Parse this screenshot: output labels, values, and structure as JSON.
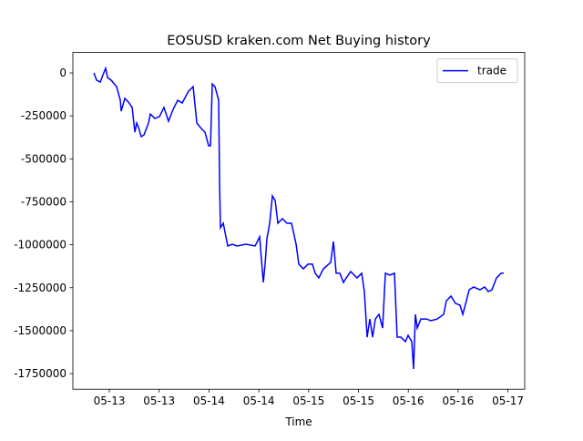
{
  "chart_data": {
    "type": "line",
    "title": "EOSUSD kraken.com Net Buying history",
    "xlabel": "Time",
    "x": [
      -0.155,
      -0.128,
      -0.091,
      -0.064,
      -0.037,
      -0.018,
      0.018,
      0.073,
      0.11,
      0.119,
      0.155,
      0.192,
      0.229,
      0.256,
      0.274,
      0.293,
      0.32,
      0.347,
      0.393,
      0.411,
      0.457,
      0.503,
      0.548,
      0.594,
      0.64,
      0.686,
      0.731,
      0.795,
      0.841,
      0.878,
      0.914,
      0.96,
      0.996,
      1.015,
      1.033,
      1.06,
      1.097,
      1.106,
      1.115,
      1.143,
      1.188,
      1.234,
      1.28,
      1.371,
      1.463,
      1.508,
      1.545,
      1.563,
      1.581,
      1.609,
      1.636,
      1.664,
      1.691,
      1.737,
      1.782,
      1.828,
      1.874,
      1.901,
      1.947,
      1.993,
      2.038,
      2.066,
      2.102,
      2.148,
      2.221,
      2.249,
      2.276,
      2.313,
      2.349,
      2.377,
      2.422,
      2.486,
      2.532,
      2.559,
      2.587,
      2.614,
      2.642,
      2.669,
      2.706,
      2.742,
      2.77,
      2.815,
      2.861,
      2.888,
      2.925,
      2.971,
      2.998,
      3.035,
      3.053,
      3.071,
      3.09,
      3.126,
      3.181,
      3.227,
      3.291,
      3.355,
      3.382,
      3.428,
      3.473,
      3.519,
      3.547,
      3.583,
      3.611,
      3.656,
      3.72,
      3.766,
      3.803,
      3.839,
      3.885,
      3.931,
      3.958
    ],
    "series": [
      {
        "name": "trade",
        "color": "#0000ff",
        "values": [
          0,
          -42000,
          -53000,
          -11000,
          27000,
          -27000,
          -42000,
          -80000,
          -159000,
          -223000,
          -148000,
          -170000,
          -201000,
          -345000,
          -292000,
          -318000,
          -371000,
          -361000,
          -292000,
          -239000,
          -265000,
          -254000,
          -201000,
          -281000,
          -212000,
          -159000,
          -175000,
          -106000,
          -80000,
          -292000,
          -318000,
          -345000,
          -424000,
          -424000,
          -64000,
          -80000,
          -159000,
          -636000,
          -901000,
          -875000,
          -1007000,
          -997000,
          -1007000,
          -997000,
          -1007000,
          -954000,
          -1219000,
          -1113000,
          -965000,
          -875000,
          -716000,
          -742000,
          -875000,
          -848000,
          -875000,
          -875000,
          -997000,
          -1113000,
          -1140000,
          -1113000,
          -1113000,
          -1166000,
          -1193000,
          -1140000,
          -1103000,
          -981000,
          -1166000,
          -1166000,
          -1219000,
          -1193000,
          -1156000,
          -1193000,
          -1166000,
          -1272000,
          -1538000,
          -1432000,
          -1538000,
          -1432000,
          -1405000,
          -1485000,
          -1166000,
          -1177000,
          -1166000,
          -1538000,
          -1538000,
          -1564000,
          -1527000,
          -1564000,
          -1723000,
          -1405000,
          -1485000,
          -1432000,
          -1432000,
          -1442000,
          -1432000,
          -1405000,
          -1326000,
          -1299000,
          -1341000,
          -1352000,
          -1405000,
          -1326000,
          -1262000,
          -1246000,
          -1262000,
          -1246000,
          -1272000,
          -1262000,
          -1193000,
          -1166000,
          -1166000
        ]
      }
    ],
    "xlim": [
      -0.366,
      4.168
    ],
    "xticks": [
      {
        "value": 0,
        "label": "05-13"
      },
      {
        "value": 0.5,
        "label": "05-13"
      },
      {
        "value": 1,
        "label": "05-14"
      },
      {
        "value": 1.5,
        "label": "05-14"
      },
      {
        "value": 2,
        "label": "05-15"
      },
      {
        "value": 2.5,
        "label": "05-15"
      },
      {
        "value": 3,
        "label": "05-16"
      },
      {
        "value": 3.5,
        "label": "05-16"
      },
      {
        "value": 4,
        "label": "05-17"
      }
    ],
    "ylim": [
      -1841000,
      119000
    ],
    "yticks": [
      0,
      -250000,
      -500000,
      -750000,
      -1000000,
      -1250000,
      -1500000,
      -1750000
    ],
    "legend": "upper right"
  }
}
